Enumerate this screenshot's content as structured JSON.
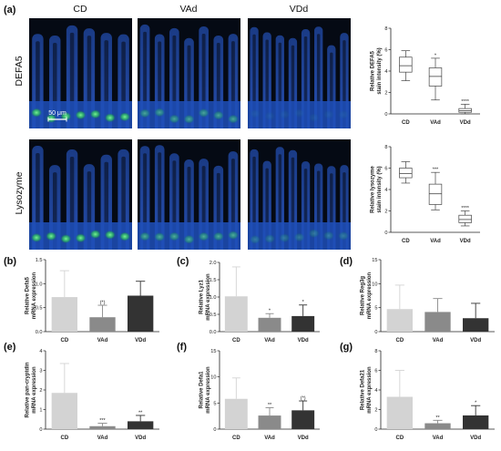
{
  "panel_labels": [
    "(a)",
    "(b)",
    "(c)",
    "(d)",
    "(e)",
    "(f)",
    "(g)"
  ],
  "micrograph": {
    "columns": [
      "CD",
      "VAd",
      "VDd"
    ],
    "rows": [
      "DEFA5",
      "Lysozyme"
    ],
    "scale_bar": "50 μm",
    "colors": {
      "background": "#050a14",
      "nuclei": "#1f4fb8",
      "stain": "#3fe06a"
    }
  },
  "chart_data": [
    {
      "id": "a-top",
      "type": "box",
      "xlabel": "",
      "ylabel": "Relative DEFA5 stain intensity (%)",
      "ylim": [
        0,
        8
      ],
      "yticks": [
        0,
        2,
        4,
        6,
        8
      ],
      "categories": [
        "CD",
        "VAd",
        "VDd"
      ],
      "boxes": [
        {
          "min": 3.1,
          "q1": 3.9,
          "median": 4.5,
          "q3": 5.3,
          "max": 5.9
        },
        {
          "min": 1.3,
          "q1": 2.6,
          "median": 3.5,
          "q3": 4.3,
          "max": 5.2
        },
        {
          "min": 0.0,
          "q1": 0.15,
          "median": 0.3,
          "q3": 0.5,
          "max": 0.9
        }
      ],
      "significance": [
        "",
        "*",
        "****"
      ],
      "grid": false
    },
    {
      "id": "a-bottom",
      "type": "box",
      "xlabel": "",
      "ylabel": "Relative lysozyme stain intensity (%)",
      "ylim": [
        0,
        8
      ],
      "yticks": [
        0,
        2,
        4,
        6,
        8
      ],
      "categories": [
        "CD",
        "VAd",
        "VDd"
      ],
      "boxes": [
        {
          "min": 4.6,
          "q1": 5.1,
          "median": 5.5,
          "q3": 6.0,
          "max": 6.6
        },
        {
          "min": 2.1,
          "q1": 2.6,
          "median": 3.6,
          "q3": 4.5,
          "max": 5.6
        },
        {
          "min": 0.6,
          "q1": 0.9,
          "median": 1.2,
          "q3": 1.6,
          "max": 2.0
        }
      ],
      "significance": [
        "",
        "***",
        "****"
      ],
      "grid": false
    },
    {
      "id": "b",
      "type": "bar",
      "ylabel": "Relative Defa5 mRNA expression",
      "ylim": [
        0,
        1.5
      ],
      "yticks": [
        0.0,
        0.5,
        1.0,
        1.5
      ],
      "categories": [
        "CD",
        "VAd",
        "VDd"
      ],
      "values": [
        0.72,
        0.3,
        0.75
      ],
      "errors": [
        0.55,
        0.25,
        0.3
      ],
      "significance": [
        "",
        "(*)",
        ""
      ],
      "grid": false
    },
    {
      "id": "c",
      "type": "bar",
      "ylabel": "Relative Lyz1 mRNA expression",
      "ylim": [
        0,
        2.0
      ],
      "yticks": [
        0.0,
        0.5,
        1.0,
        1.5,
        2.0
      ],
      "categories": [
        "CD",
        "VAd",
        "VDd"
      ],
      "values": [
        1.02,
        0.4,
        0.45
      ],
      "errors": [
        0.85,
        0.12,
        0.32
      ],
      "significance": [
        "",
        "*",
        "*"
      ],
      "grid": false
    },
    {
      "id": "d",
      "type": "bar",
      "ylabel": "Relative Reg3g mRNA expression",
      "ylim": [
        0,
        15
      ],
      "yticks": [
        0,
        5,
        10,
        15
      ],
      "categories": [
        "CD",
        "VAd",
        "VDd"
      ],
      "values": [
        4.7,
        4.1,
        2.8
      ],
      "errors": [
        5.0,
        2.8,
        3.1
      ],
      "significance": [
        "",
        "",
        ""
      ],
      "grid": false
    },
    {
      "id": "e",
      "type": "bar",
      "ylabel": "Relative pan-cryptdin mRNA expression",
      "ylim": [
        0,
        4
      ],
      "yticks": [
        0,
        1,
        2,
        3,
        4
      ],
      "categories": [
        "CD",
        "VAd",
        "VDd"
      ],
      "values": [
        1.85,
        0.15,
        0.4
      ],
      "errors": [
        1.5,
        0.15,
        0.3
      ],
      "significance": [
        "",
        "***",
        "**"
      ],
      "grid": false
    },
    {
      "id": "f",
      "type": "bar",
      "ylabel": "Relative Defa1 mRNA expression",
      "ylim": [
        0,
        15
      ],
      "yticks": [
        0,
        5,
        10,
        15
      ],
      "categories": [
        "CD",
        "VAd",
        "VDd"
      ],
      "values": [
        5.8,
        2.6,
        3.6
      ],
      "errors": [
        4.0,
        1.5,
        1.8
      ],
      "significance": [
        "",
        "**",
        "(*)"
      ],
      "grid": false
    },
    {
      "id": "g",
      "type": "bar",
      "ylabel": "Relative Defa21 mRNA expression",
      "ylim": [
        0,
        8
      ],
      "yticks": [
        0,
        2,
        4,
        6,
        8
      ],
      "categories": [
        "CD",
        "VAd",
        "VDd"
      ],
      "values": [
        3.3,
        0.6,
        1.4
      ],
      "errors": [
        2.7,
        0.3,
        1.0
      ],
      "significance": [
        "",
        "**",
        "*"
      ],
      "grid": false
    }
  ],
  "colors": {
    "CD": "#d3d3d3",
    "VAd": "#8a8a8a",
    "VDd": "#333333"
  }
}
